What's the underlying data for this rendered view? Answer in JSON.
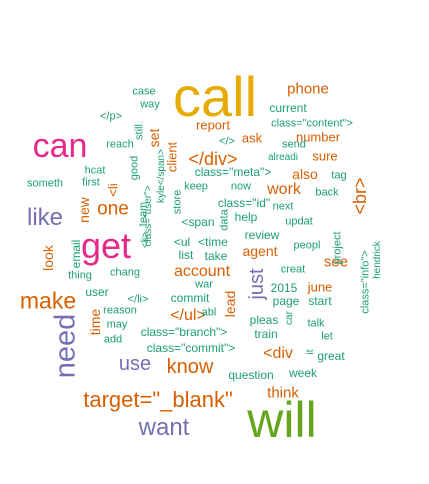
{
  "colors": {
    "teal": "#1b9e77",
    "orange": "#d95f02",
    "purple": "#7570b3",
    "pink": "#e7298a",
    "green": "#66a61e",
    "gold": "#e6ab02",
    "brown": "#a6761d"
  },
  "words": [
    {
      "text": "call",
      "color": "gold"
    },
    {
      "text": "will",
      "color": "green"
    },
    {
      "text": "can",
      "color": "pink"
    },
    {
      "text": "get",
      "color": "pink"
    },
    {
      "text": "need",
      "color": "purple"
    },
    {
      "text": "make",
      "color": "orange"
    },
    {
      "text": "like",
      "color": "purple"
    },
    {
      "text": "want",
      "color": "purple"
    },
    {
      "text": "target=\"_blank\"",
      "color": "orange"
    },
    {
      "text": "</div>",
      "color": "orange"
    },
    {
      "text": "one",
      "color": "orange"
    },
    {
      "text": "know",
      "color": "orange"
    },
    {
      "text": "use",
      "color": "purple"
    },
    {
      "text": "just",
      "color": "purple"
    },
    {
      "text": "phone",
      "color": "orange"
    },
    {
      "text": "<br>",
      "color": "orange"
    },
    {
      "text": "work",
      "color": "orange"
    },
    {
      "text": "account",
      "color": "orange"
    },
    {
      "text": "<div",
      "color": "orange"
    },
    {
      "text": "</ul>",
      "color": "orange"
    },
    {
      "text": "think",
      "color": "orange"
    },
    {
      "text": "also",
      "color": "orange"
    },
    {
      "text": "see",
      "color": "orange"
    },
    {
      "text": "lead",
      "color": "orange"
    },
    {
      "text": "sure",
      "color": "orange"
    },
    {
      "text": "number",
      "color": "orange"
    },
    {
      "text": "ask",
      "color": "orange"
    },
    {
      "text": "agent",
      "color": "orange"
    },
    {
      "text": "look",
      "color": "orange"
    },
    {
      "text": "new",
      "color": "orange"
    },
    {
      "text": "time",
      "color": "orange"
    },
    {
      "text": "june",
      "color": "orange"
    },
    {
      "text": "report",
      "color": "orange"
    },
    {
      "text": "<li",
      "color": "orange"
    },
    {
      "text": "set",
      "color": "orange"
    },
    {
      "text": "client",
      "color": "orange"
    },
    {
      "text": "project",
      "color": "teal"
    },
    {
      "text": "current",
      "color": "teal"
    },
    {
      "text": "case",
      "color": "teal"
    },
    {
      "text": "way",
      "color": "teal"
    },
    {
      "text": "</p>",
      "color": "teal"
    },
    {
      "text": "still",
      "color": "teal"
    },
    {
      "text": "reach",
      "color": "teal"
    },
    {
      "text": "good",
      "color": "teal"
    },
    {
      "text": "class=\"content\">",
      "color": "teal"
    },
    {
      "text": "</>",
      "color": "teal"
    },
    {
      "text": "send",
      "color": "teal"
    },
    {
      "text": "alreadi",
      "color": "teal"
    },
    {
      "text": "tag",
      "color": "teal"
    },
    {
      "text": "back",
      "color": "teal"
    },
    {
      "text": "hcat",
      "color": "teal"
    },
    {
      "text": "first",
      "color": "teal"
    },
    {
      "text": "someth",
      "color": "teal"
    },
    {
      "text": "class=\"meta\">",
      "color": "teal"
    },
    {
      "text": "class=\"id\"",
      "color": "teal"
    },
    {
      "text": "keep",
      "color": "teal"
    },
    {
      "text": "now",
      "color": "teal"
    },
    {
      "text": "next",
      "color": "teal"
    },
    {
      "text": "updat",
      "color": "teal"
    },
    {
      "text": "class=\"user\">",
      "color": "teal"
    },
    {
      "text": "kyle</span>",
      "color": "teal"
    },
    {
      "text": "team",
      "color": "teal"
    },
    {
      "text": "store",
      "color": "teal"
    },
    {
      "text": "data",
      "color": "teal"
    },
    {
      "text": "help",
      "color": "teal"
    },
    {
      "text": "<span",
      "color": "teal"
    },
    {
      "text": "<ul",
      "color": "teal"
    },
    {
      "text": "<time",
      "color": "teal"
    },
    {
      "text": "review",
      "color": "teal"
    },
    {
      "text": "peopl",
      "color": "teal"
    },
    {
      "text": "list",
      "color": "teal"
    },
    {
      "text": "take",
      "color": "teal"
    },
    {
      "text": "email",
      "color": "teal"
    },
    {
      "text": "<li>",
      "color": "teal"
    },
    {
      "text": "2015",
      "color": "teal"
    },
    {
      "text": "class=\"info\">",
      "color": "teal"
    },
    {
      "text": "hendrick",
      "color": "teal"
    },
    {
      "text": "thing",
      "color": "teal"
    },
    {
      "text": "chang",
      "color": "teal"
    },
    {
      "text": "creat",
      "color": "teal"
    },
    {
      "text": "war",
      "color": "teal"
    },
    {
      "text": "user",
      "color": "teal"
    },
    {
      "text": "commit",
      "color": "teal"
    },
    {
      "text": "abl",
      "color": "teal"
    },
    {
      "text": "page",
      "color": "teal"
    },
    {
      "text": "start",
      "color": "teal"
    },
    {
      "text": "</li>",
      "color": "teal"
    },
    {
      "text": "reason",
      "color": "teal"
    },
    {
      "text": "may",
      "color": "teal"
    },
    {
      "text": "pleas",
      "color": "teal"
    },
    {
      "text": "car",
      "color": "teal"
    },
    {
      "text": "talk",
      "color": "teal"
    },
    {
      "text": "add",
      "color": "teal"
    },
    {
      "text": "class=\"branch\">",
      "color": "teal"
    },
    {
      "text": "train",
      "color": "teal"
    },
    {
      "text": "let",
      "color": "teal"
    },
    {
      "text": "class=\"commit\">",
      "color": "teal"
    },
    {
      "text": "it",
      "color": "teal"
    },
    {
      "text": "great",
      "color": "teal"
    },
    {
      "text": "question",
      "color": "teal"
    },
    {
      "text": "week",
      "color": "teal"
    }
  ]
}
